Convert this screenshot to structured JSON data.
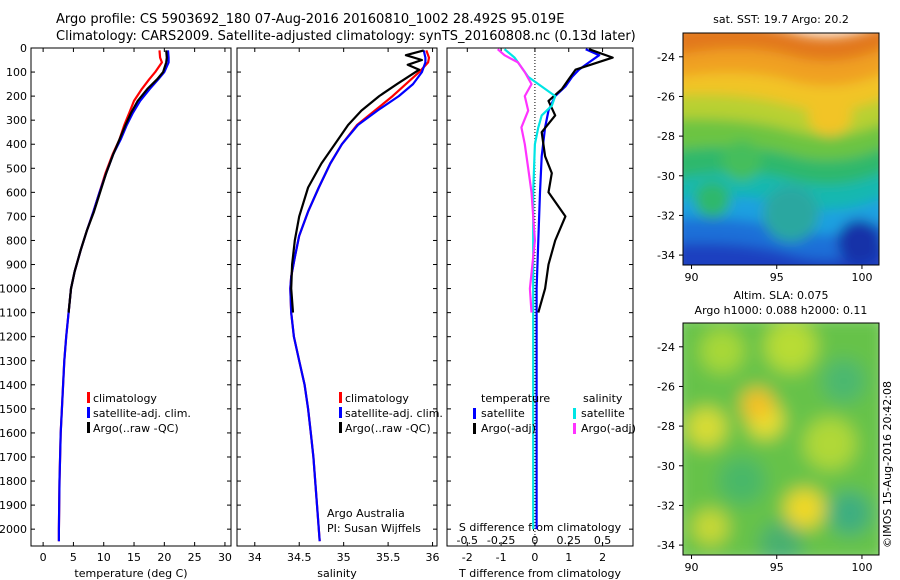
{
  "title_line1": "Argo profile: CS 5903692_180 07-Aug-2016 20160810_1002 28.492S 95.019E",
  "title_line2": "Climatology: CARS2009. Satellite-adjusted climatology: synTS_20160808.nc (0.13d later)",
  "colors": {
    "climatology": "#ff0000",
    "satellite": "#0000ff",
    "argo": "#000000",
    "sal_sat": "#00e5e5",
    "sal_argo": "#ff33ff"
  },
  "depth_ticks": [
    0,
    100,
    200,
    300,
    400,
    500,
    600,
    700,
    800,
    900,
    1000,
    1100,
    1200,
    1300,
    1400,
    1500,
    1600,
    1700,
    1800,
    1900,
    2000
  ],
  "chart_data": [
    {
      "type": "line",
      "xlabel": "temperature (deg C)",
      "xticks": [
        0,
        5,
        10,
        15,
        20,
        25,
        30
      ],
      "xlim": [
        -2,
        31
      ],
      "ylim": [
        2070,
        0
      ],
      "legend": [
        "climatology",
        "satellite-adj. clim.",
        "Argo(..raw -QC)"
      ],
      "series": [
        {
          "name": "climatology",
          "color": "#ff0000",
          "x": [
            19.2,
            19.3,
            19.6,
            18.5,
            17.5,
            16.3,
            15.0,
            14.2,
            13.4,
            12.6,
            11.5,
            10.3,
            9.3,
            8.3,
            7.2,
            6.2,
            5.2,
            4.6,
            4.2,
            3.8,
            3.5,
            3.3,
            3.1,
            2.9,
            2.8,
            2.7,
            2.65,
            2.6,
            2.6
          ],
          "y": [
            10,
            40,
            60,
            100,
            130,
            170,
            220,
            270,
            320,
            380,
            440,
            520,
            600,
            680,
            760,
            840,
            930,
            1000,
            1100,
            1200,
            1300,
            1400,
            1500,
            1600,
            1700,
            1800,
            1900,
            2000,
            2050
          ]
        },
        {
          "name": "satellite-adj. clim.",
          "color": "#0000ff",
          "x": [
            20.6,
            20.7,
            20.7,
            20.0,
            19.0,
            17.6,
            16.0,
            14.8,
            13.8,
            12.8,
            11.6,
            10.4,
            9.3,
            8.3,
            7.2,
            6.2,
            5.2,
            4.6,
            4.2,
            3.8,
            3.5,
            3.3,
            3.1,
            2.9,
            2.8,
            2.7,
            2.65,
            2.6,
            2.6
          ],
          "y": [
            10,
            40,
            60,
            100,
            130,
            170,
            220,
            270,
            320,
            380,
            440,
            520,
            600,
            680,
            760,
            840,
            930,
            1000,
            1100,
            1200,
            1300,
            1400,
            1500,
            1600,
            1700,
            1800,
            1900,
            2000,
            2050
          ]
        },
        {
          "name": "Argo(..raw -QC)",
          "color": "#000000",
          "x": [
            20.3,
            20.4,
            20.3,
            19.8,
            18.8,
            17.2,
            15.6,
            14.5,
            13.6,
            12.6,
            11.6,
            10.4,
            9.4,
            8.4,
            7.2,
            6.2,
            5.2,
            4.6,
            4.2
          ],
          "y": [
            10,
            40,
            60,
            100,
            130,
            170,
            220,
            270,
            320,
            380,
            440,
            520,
            600,
            680,
            760,
            840,
            930,
            1000,
            1100
          ]
        }
      ]
    },
    {
      "type": "line",
      "xlabel": "salinity",
      "xticks": [
        34,
        34.5,
        35,
        35.5,
        36
      ],
      "xlim": [
        33.8,
        36.05
      ],
      "ylim": [
        2070,
        0
      ],
      "legend": [
        "climatology",
        "satellite-adj. clim.",
        "Argo(..raw -QC)"
      ],
      "annotations": [
        "Argo Australia",
        "PI: Susan Wijffels"
      ],
      "series": [
        {
          "name": "climatology",
          "color": "#ff0000",
          "x": [
            35.93,
            35.96,
            35.95,
            35.85,
            35.7,
            35.55,
            35.35,
            35.15,
            34.98,
            34.85,
            34.72,
            34.6,
            34.5,
            34.45,
            34.41,
            34.4,
            34.41,
            34.44,
            34.5,
            34.56,
            34.6,
            34.63,
            34.66,
            34.68,
            34.7,
            34.71,
            34.72,
            34.73
          ],
          "y": [
            10,
            40,
            60,
            100,
            150,
            200,
            260,
            320,
            400,
            480,
            580,
            680,
            780,
            870,
            950,
            1000,
            1100,
            1200,
            1300,
            1400,
            1500,
            1600,
            1700,
            1800,
            1900,
            1950,
            2000,
            2050
          ]
        },
        {
          "name": "satellite-adj. clim.",
          "color": "#0000ff",
          "x": [
            35.9,
            35.92,
            35.92,
            35.88,
            35.78,
            35.62,
            35.38,
            35.16,
            34.98,
            34.85,
            34.72,
            34.6,
            34.5,
            34.45,
            34.41,
            34.4,
            34.41,
            34.44,
            34.5,
            34.56,
            34.6,
            34.63,
            34.66,
            34.68,
            34.7,
            34.71,
            34.72,
            34.73
          ],
          "y": [
            10,
            40,
            60,
            100,
            150,
            200,
            260,
            320,
            400,
            480,
            580,
            680,
            780,
            870,
            950,
            1000,
            1100,
            1200,
            1300,
            1400,
            1500,
            1600,
            1700,
            1800,
            1900,
            1950,
            2000,
            2050
          ]
        },
        {
          "name": "Argo(..raw -QC)",
          "color": "#000000",
          "x": [
            35.9,
            35.7,
            35.88,
            35.72,
            35.85,
            35.6,
            35.4,
            35.2,
            35.05,
            34.9,
            34.75,
            34.6,
            34.5,
            34.45,
            34.42,
            34.41,
            34.43
          ],
          "y": [
            10,
            30,
            50,
            70,
            90,
            150,
            200,
            260,
            320,
            400,
            480,
            580,
            700,
            800,
            900,
            1000,
            1100
          ]
        }
      ]
    },
    {
      "type": "line",
      "xlabel": "T difference from climatology",
      "xlabel_top": "S difference from climatology",
      "xticks": [
        -2,
        -1,
        0,
        1,
        2
      ],
      "xticks_top": [
        "-0.5",
        "-0.25",
        "0",
        "0.25",
        "0.5"
      ],
      "xlim": [
        -2.6,
        2.9
      ],
      "ylim": [
        2070,
        0
      ],
      "legend_titles": [
        "temperature",
        "salinity"
      ],
      "legend": [
        "satellite",
        "Argo(-adj)",
        "satellite",
        "Argo(-adj)"
      ],
      "series": [
        {
          "name": "satellite",
          "color": "#0000ff",
          "x": [
            1.5,
            1.9,
            1.6,
            1.3,
            1.1,
            0.9,
            0.6,
            0.4,
            0.3,
            0.2,
            0.15,
            0.1,
            0.05,
            0.05,
            0.05,
            0.05,
            0.05,
            0.05,
            0.05,
            0.05
          ],
          "y": [
            5,
            30,
            60,
            90,
            120,
            160,
            200,
            260,
            330,
            450,
            600,
            800,
            1000,
            1200,
            1400,
            1600,
            1700,
            1800,
            1900,
            2000
          ]
        },
        {
          "name": "Argo(-adj)",
          "color": "#000000",
          "x": [
            1.6,
            2.3,
            1.2,
            1.0,
            0.8,
            0.4,
            0.6,
            0.2,
            0.3,
            0.5,
            0.4,
            0.9,
            0.6,
            0.4,
            0.3,
            0.2,
            0.1
          ],
          "y": [
            5,
            40,
            90,
            130,
            170,
            220,
            280,
            350,
            450,
            520,
            600,
            700,
            800,
            900,
            1000,
            1050,
            1100
          ]
        },
        {
          "name": "satellite",
          "color": "#00e5e5",
          "x": [
            -0.9,
            -0.6,
            -0.4,
            -0.2,
            0.2,
            0.6,
            0.5,
            0.2,
            0.1,
            0.0,
            -0.05,
            -0.05,
            -0.05,
            -0.05,
            -0.05,
            -0.05,
            -0.05
          ],
          "y": [
            5,
            40,
            80,
            120,
            160,
            200,
            240,
            280,
            330,
            400,
            600,
            800,
            1000,
            1200,
            1500,
            1800,
            2000
          ]
        },
        {
          "name": "Argo(-adj)",
          "color": "#ff33ff",
          "x": [
            -1.1,
            -0.9,
            -0.5,
            -0.3,
            -0.1,
            -0.3,
            -0.2,
            -0.4,
            -0.3,
            -0.2,
            -0.1,
            0.0,
            -0.15,
            -0.1
          ],
          "y": [
            5,
            30,
            60,
            100,
            150,
            200,
            260,
            330,
            400,
            500,
            600,
            800,
            1000,
            1100
          ]
        }
      ]
    },
    {
      "type": "heatmap",
      "title": "sat. SST: 19.7 Argo: 20.2",
      "xticks": [
        90,
        95,
        100
      ],
      "yticks": [
        -24,
        -26,
        -28,
        -30,
        -32,
        -34
      ],
      "xlim": [
        89.5,
        101
      ],
      "ylim": [
        -34.5,
        -22.8
      ]
    },
    {
      "type": "heatmap",
      "title": "Altim. SLA: 0.075",
      "subtitle": "Argo h1000: 0.088 h2000: 0.11",
      "xticks": [
        90,
        95,
        100
      ],
      "yticks": [
        -24,
        -26,
        -28,
        -30,
        -32,
        -34
      ],
      "xlim": [
        89.5,
        101
      ],
      "ylim": [
        -34.5,
        -22.8
      ]
    }
  ],
  "side_label": "©IMOS 15-Aug-2016 20:42:08"
}
